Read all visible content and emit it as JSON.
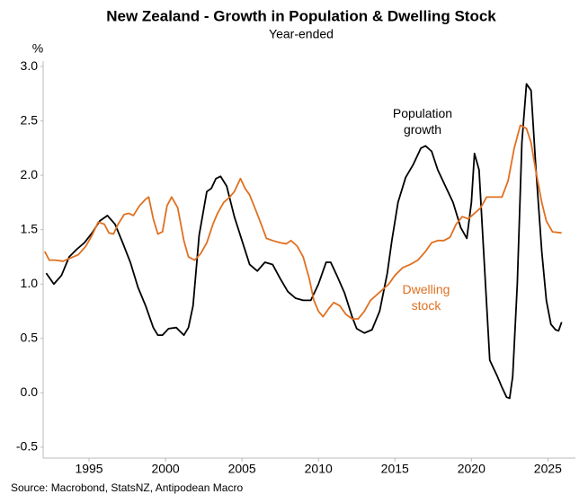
{
  "chart_data": {
    "type": "line",
    "title": "New Zealand - Growth in Population & Dwelling Stock",
    "subtitle": "Year-ended",
    "y_label": "%",
    "source": "Source: Macrobond, StatsNZ, Antipodean Macro",
    "xlim": [
      1992,
      2026.8
    ],
    "xticks": [
      1995,
      2000,
      2005,
      2010,
      2015,
      2020,
      2025
    ],
    "ylim": [
      -0.6,
      3.05
    ],
    "yticks": [
      {
        "value": 3,
        "label": "3.0"
      },
      {
        "value": 2.5,
        "label": "2.5"
      },
      {
        "value": 2,
        "label": "2.0"
      },
      {
        "value": 1.5,
        "label": "1.5"
      },
      {
        "value": 1,
        "label": "1.0"
      },
      {
        "value": 0.5,
        "label": "0.5"
      },
      {
        "value": 0,
        "label": "0.0"
      },
      {
        "value": -0.5,
        "label": "-0.5"
      }
    ],
    "grid": false,
    "series": [
      {
        "name": "Population growth",
        "color": "#000000",
        "x": [
          1992.2,
          1992.7,
          1993.2,
          1993.7,
          1994.2,
          1994.7,
          1995.2,
          1995.7,
          1996.2,
          1996.7,
          1997.2,
          1997.7,
          1998.2,
          1998.7,
          1999.2,
          1999.5,
          1999.8,
          2000.2,
          2000.7,
          2001.2,
          2001.5,
          2001.8,
          2002.2,
          2002.7,
          2003.0,
          2003.3,
          2003.6,
          2004.0,
          2004.5,
          2005.0,
          2005.5,
          2006.0,
          2006.5,
          2007.0,
          2007.5,
          2008.0,
          2008.5,
          2009.0,
          2009.5,
          2010.0,
          2010.5,
          2010.8,
          2011.2,
          2011.7,
          2012.2,
          2012.5,
          2013.0,
          2013.5,
          2014.0,
          2014.5,
          2014.8,
          2015.2,
          2015.7,
          2016.2,
          2016.7,
          2017.0,
          2017.4,
          2017.8,
          2018.3,
          2018.8,
          2019.3,
          2019.7,
          2020.0,
          2020.2,
          2020.5,
          2020.8,
          2021.2,
          2021.7,
          2022.0,
          2022.3,
          2022.5,
          2022.7,
          2023.0,
          2023.3,
          2023.6,
          2023.9,
          2024.2,
          2024.6,
          2024.9,
          2025.2,
          2025.5,
          2025.7,
          2025.9
        ],
        "values": [
          1.1,
          1.0,
          1.08,
          1.25,
          1.32,
          1.38,
          1.47,
          1.58,
          1.63,
          1.55,
          1.38,
          1.2,
          0.97,
          0.8,
          0.6,
          0.53,
          0.53,
          0.59,
          0.6,
          0.53,
          0.6,
          0.8,
          1.45,
          1.85,
          1.88,
          1.97,
          1.99,
          1.9,
          1.62,
          1.4,
          1.18,
          1.12,
          1.2,
          1.18,
          1.05,
          0.93,
          0.87,
          0.85,
          0.85,
          1.0,
          1.2,
          1.2,
          1.08,
          0.92,
          0.7,
          0.59,
          0.55,
          0.58,
          0.75,
          1.1,
          1.4,
          1.75,
          1.98,
          2.1,
          2.25,
          2.27,
          2.22,
          2.05,
          1.9,
          1.75,
          1.52,
          1.42,
          1.75,
          2.2,
          2.05,
          1.3,
          0.3,
          0.15,
          0.05,
          -0.04,
          -0.05,
          0.15,
          1.0,
          2.3,
          2.84,
          2.78,
          2.1,
          1.3,
          0.85,
          0.63,
          0.58,
          0.57,
          0.65
        ]
      },
      {
        "name": "Dwelling stock",
        "color": "#e07020",
        "x": [
          1992.1,
          1992.4,
          1992.8,
          1993.3,
          1993.8,
          1994.3,
          1994.8,
          1995.2,
          1995.6,
          1996.0,
          1996.3,
          1996.6,
          1996.9,
          1997.3,
          1997.6,
          1997.9,
          1998.3,
          1998.7,
          1998.9,
          1999.2,
          1999.5,
          1999.8,
          2000.1,
          2000.4,
          2000.8,
          2001.2,
          2001.5,
          2001.9,
          2002.3,
          2002.7,
          2003.1,
          2003.4,
          2003.8,
          2004.2,
          2004.5,
          2004.9,
          2005.2,
          2005.5,
          2005.9,
          2006.2,
          2006.6,
          2007.0,
          2007.5,
          2007.9,
          2008.2,
          2008.6,
          2009.0,
          2009.4,
          2009.7,
          2010.0,
          2010.3,
          2010.7,
          2011.0,
          2011.4,
          2011.8,
          2012.2,
          2012.6,
          2013.0,
          2013.4,
          2013.8,
          2014.2,
          2014.6,
          2015.0,
          2015.5,
          2016.0,
          2016.5,
          2017.0,
          2017.4,
          2017.8,
          2018.2,
          2018.6,
          2019.0,
          2019.4,
          2019.8,
          2020.2,
          2020.6,
          2021.0,
          2021.5,
          2022.0,
          2022.4,
          2022.8,
          2023.2,
          2023.6,
          2023.9,
          2024.2,
          2024.6,
          2024.9,
          2025.3,
          2025.9
        ],
        "values": [
          1.3,
          1.22,
          1.22,
          1.21,
          1.24,
          1.27,
          1.35,
          1.45,
          1.57,
          1.55,
          1.47,
          1.46,
          1.55,
          1.64,
          1.65,
          1.63,
          1.72,
          1.78,
          1.8,
          1.6,
          1.46,
          1.48,
          1.72,
          1.8,
          1.7,
          1.4,
          1.25,
          1.22,
          1.28,
          1.38,
          1.55,
          1.65,
          1.75,
          1.8,
          1.85,
          1.97,
          1.88,
          1.82,
          1.68,
          1.57,
          1.42,
          1.4,
          1.38,
          1.37,
          1.4,
          1.35,
          1.25,
          1.05,
          0.85,
          0.75,
          0.7,
          0.78,
          0.83,
          0.8,
          0.72,
          0.68,
          0.68,
          0.75,
          0.85,
          0.9,
          0.95,
          1.0,
          1.08,
          1.15,
          1.18,
          1.22,
          1.3,
          1.38,
          1.4,
          1.4,
          1.43,
          1.55,
          1.62,
          1.6,
          1.65,
          1.7,
          1.8,
          1.8,
          1.8,
          1.95,
          2.25,
          2.46,
          2.43,
          2.3,
          2.05,
          1.75,
          1.58,
          1.48,
          1.47
        ]
      }
    ]
  }
}
